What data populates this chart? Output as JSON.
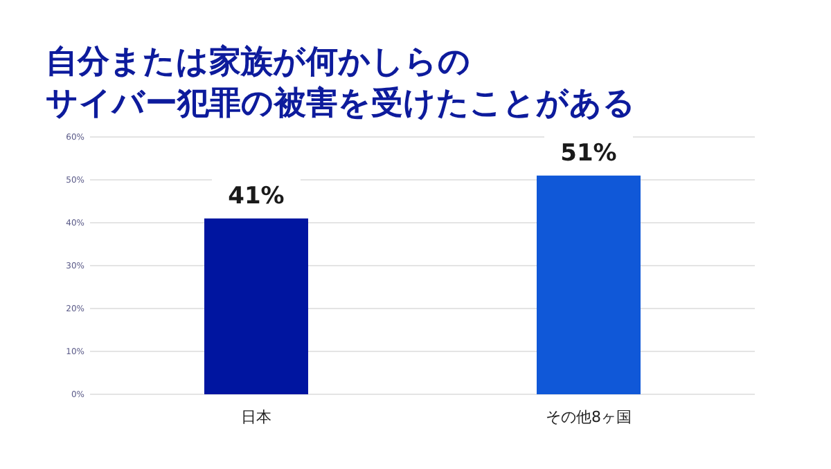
{
  "chart_data": {
    "type": "bar",
    "title": "自分または家族が何かしらの",
    "subtitle": "サイバー犯罪の被害を受けたことがある",
    "categories": [
      "日本",
      "その他8ヶ国"
    ],
    "values": [
      41,
      51
    ],
    "colors": [
      "#0015a0",
      "#1058d8"
    ],
    "value_labels": [
      "41%",
      "51%"
    ],
    "ylim": [
      0,
      60
    ],
    "yticks": [
      {
        "value": 0,
        "label": "0%"
      },
      {
        "value": 10,
        "label": "10%"
      },
      {
        "value": 20,
        "label": "20%"
      },
      {
        "value": 30,
        "label": "30%"
      },
      {
        "value": 40,
        "label": "40%"
      },
      {
        "value": 50,
        "label": "50%"
      },
      {
        "value": 60,
        "label": "60%"
      }
    ],
    "grid": "y"
  }
}
